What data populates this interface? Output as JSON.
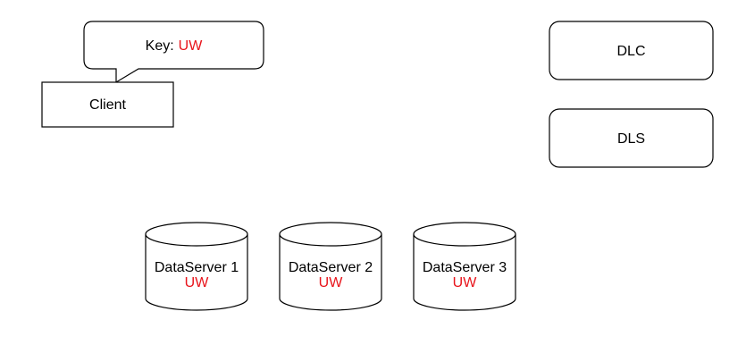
{
  "colors": {
    "accent": "#e8141b",
    "stroke": "#000000",
    "fill": "#ffffff"
  },
  "callout": {
    "label": "Key:",
    "key": "UW"
  },
  "client": {
    "label": "Client"
  },
  "dlc": {
    "label": "DLC"
  },
  "dls": {
    "label": "DLS"
  },
  "dataservers": [
    {
      "label": "DataServer 1",
      "key": "UW"
    },
    {
      "label": "DataServer 2",
      "key": "UW"
    },
    {
      "label": "DataServer 3",
      "key": "UW"
    }
  ]
}
